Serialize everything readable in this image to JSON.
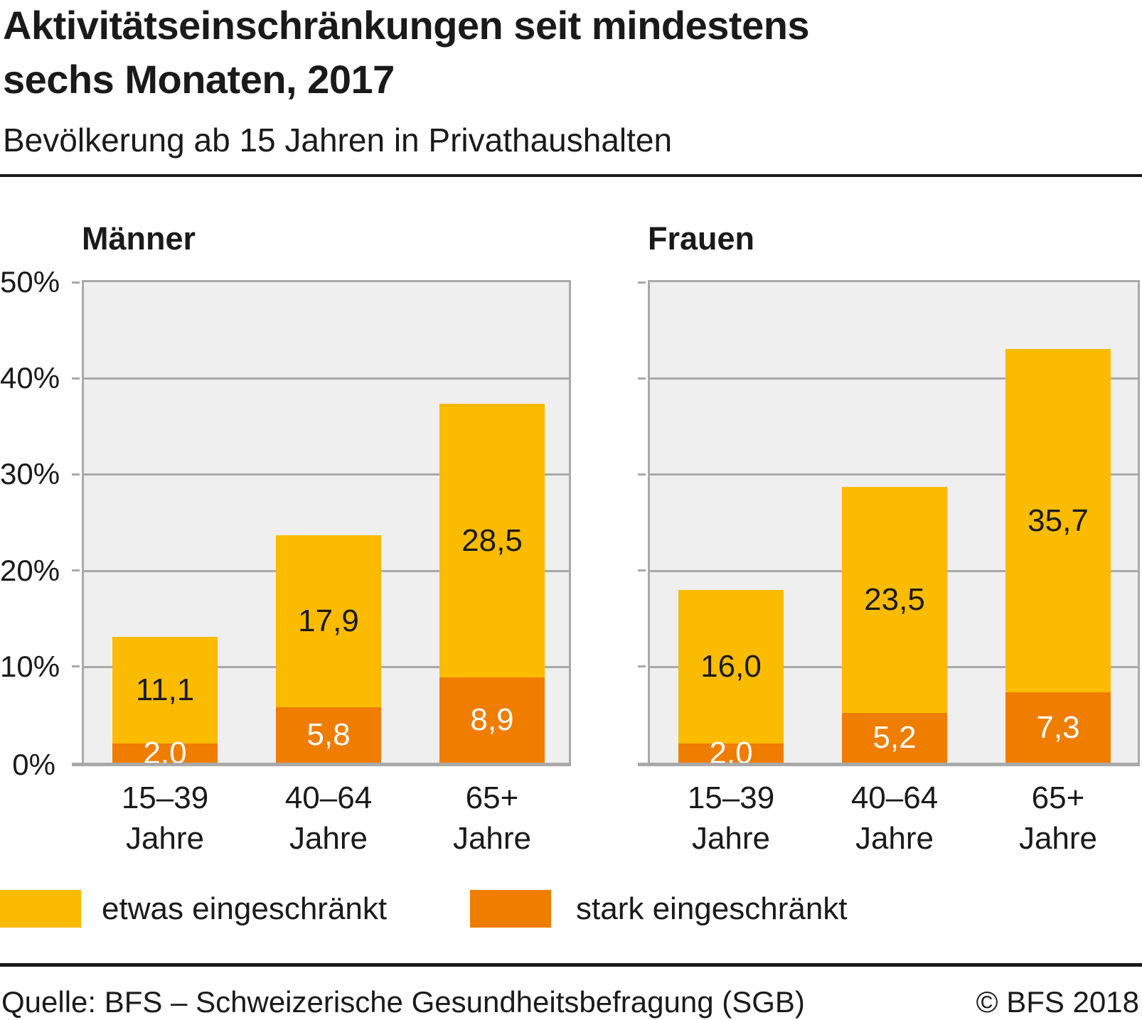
{
  "page": {
    "title_line1": "Aktivitätseinschränkungen seit mindestens",
    "title_line2": "sechs Monaten, 2017",
    "subtitle": "Bevölkerung ab 15 Jahren in Privathaushalten",
    "source": "Quelle: BFS – Schweizerische Gesundheitsbefragung (SGB)",
    "copyright": "© BFS 2018"
  },
  "legend": {
    "items": [
      {
        "label": "etwas eingeschränkt",
        "color": "#FBBB00"
      },
      {
        "label": "stark eingeschränkt",
        "color": "#EF7D00"
      }
    ]
  },
  "colors": {
    "etwas": "#FBBB00",
    "stark": "#EF7D00",
    "plot_background": "#EFEFEF",
    "grid": "#A9A9A9",
    "label_on_yellow": "#1A1A1A",
    "label_on_orange": "#FFFFFF"
  },
  "chart_data": [
    {
      "type": "bar",
      "stacked": true,
      "title": "Männer",
      "categories": [
        "15–39 Jahre",
        "40–64 Jahre",
        "65+ Jahre"
      ],
      "series": [
        {
          "name": "stark eingeschränkt",
          "color": "#EF7D00",
          "values": [
            2.0,
            5.8,
            8.9
          ]
        },
        {
          "name": "etwas eingeschränkt",
          "color": "#FBBB00",
          "values": [
            11.1,
            17.9,
            28.5
          ]
        }
      ],
      "ylim": [
        0,
        50
      ],
      "yticks": [
        0,
        10,
        20,
        30,
        40,
        50
      ],
      "ytick_labels": [
        "0%",
        "10%",
        "20%",
        "30%",
        "40%",
        "50%"
      ],
      "grid": true,
      "value_label_format": "decimal-comma"
    },
    {
      "type": "bar",
      "stacked": true,
      "title": "Frauen",
      "categories": [
        "15–39 Jahre",
        "40–64 Jahre",
        "65+ Jahre"
      ],
      "series": [
        {
          "name": "stark eingeschränkt",
          "color": "#EF7D00",
          "values": [
            2.0,
            5.2,
            7.3
          ]
        },
        {
          "name": "etwas eingeschränkt",
          "color": "#FBBB00",
          "values": [
            16.0,
            23.5,
            35.7
          ]
        }
      ],
      "ylim": [
        0,
        50
      ],
      "yticks": [
        0,
        10,
        20,
        30,
        40,
        50
      ],
      "ytick_labels": [
        "0%",
        "10%",
        "20%",
        "30%",
        "40%",
        "50%"
      ],
      "grid": true,
      "value_label_format": "decimal-comma"
    }
  ]
}
